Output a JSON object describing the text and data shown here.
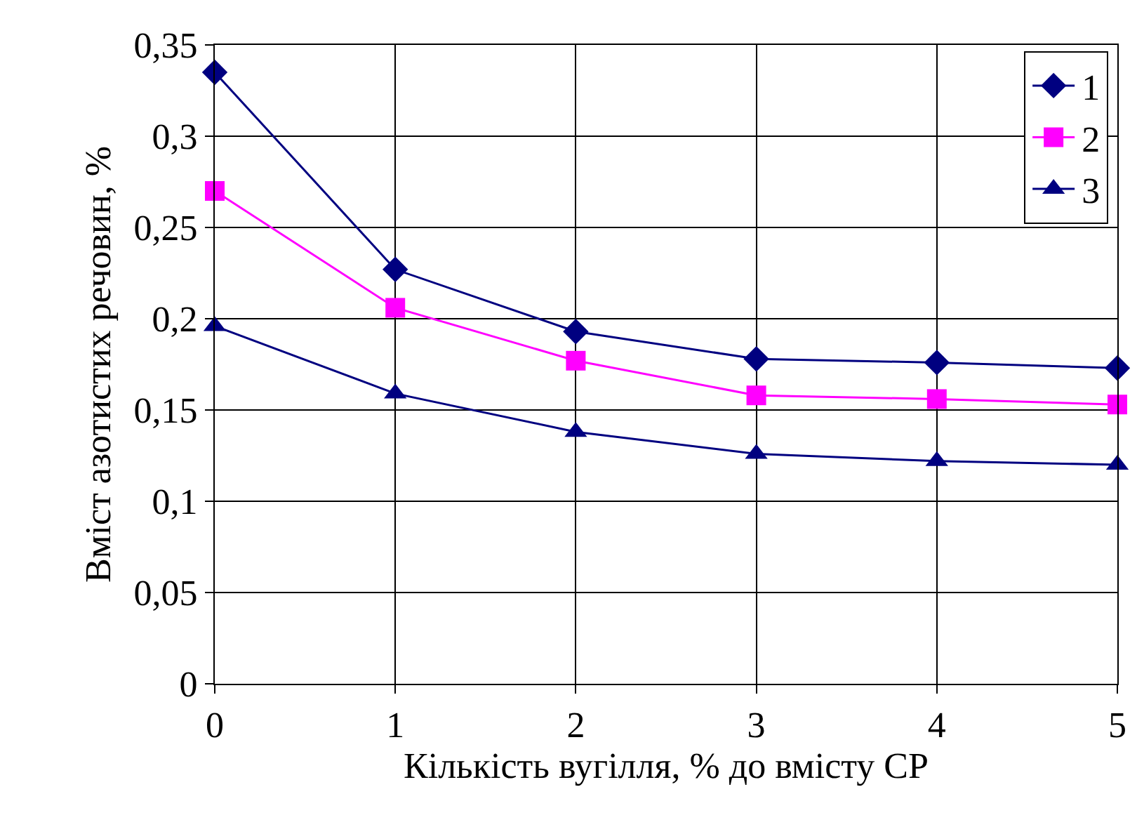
{
  "chart_data": {
    "type": "line",
    "xlabel": "Кількість вугілля, % до вмісту СР",
    "ylabel": "Вміст азотистих речовин, %",
    "x": [
      0,
      1,
      2,
      3,
      4,
      5
    ],
    "xlim": [
      0,
      5
    ],
    "xticks": [
      0,
      1,
      2,
      3,
      4,
      5
    ],
    "ylim": [
      0,
      0.35
    ],
    "yticks": [
      0,
      {
        "value": 0.05,
        "label": "0,05"
      },
      {
        "value": 0.1,
        "label": "0,1"
      },
      {
        "value": 0.15,
        "label": "0,15"
      },
      {
        "value": 0.2,
        "label": "0,2"
      },
      {
        "value": 0.25,
        "label": "0,25"
      },
      {
        "value": 0.3,
        "label": "0,3"
      },
      {
        "value": 0.35,
        "label": "0,35"
      }
    ],
    "grid": true,
    "legend": "top right",
    "line_style": "solid",
    "series": [
      {
        "name": "1",
        "color": "#000080",
        "marker": "diamond",
        "values": [
          0.335,
          0.227,
          0.193,
          0.178,
          0.176,
          0.173
        ]
      },
      {
        "name": "2",
        "color": "#ff00ff",
        "marker": "square",
        "values": [
          0.27,
          0.206,
          0.177,
          0.158,
          0.156,
          0.153
        ]
      },
      {
        "name": "3",
        "color": "#000080",
        "marker": "triangle",
        "values": [
          0.196,
          0.159,
          0.138,
          0.126,
          0.122,
          0.12
        ]
      }
    ]
  }
}
